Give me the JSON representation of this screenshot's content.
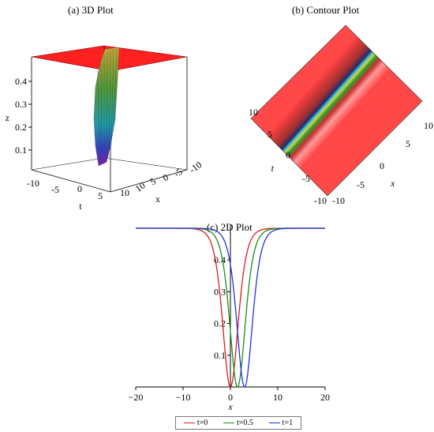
{
  "panels": {
    "a": {
      "title": "(a) 3D Plot",
      "zlabel": "z",
      "tlabel": "t",
      "xlabel": "x",
      "zticks": [
        "0.4",
        "0.3",
        "0.2",
        "0.1"
      ],
      "tticks": [
        "-10",
        "-5",
        "0",
        "5",
        "10"
      ],
      "xticks": [
        "10",
        "5",
        "0",
        "-5",
        "-10"
      ]
    },
    "b": {
      "title": "(b) Contour Plot",
      "tlabel": "t",
      "xlabel": "x",
      "tticks": [
        "10",
        "5",
        "0",
        "-5",
        "-10"
      ],
      "xticks": [
        "10",
        "5",
        "0",
        "-5",
        "-10"
      ]
    },
    "c": {
      "title": "(c) 2D Plot"
    }
  },
  "colors": {
    "surface_top": "#ff0000",
    "series": [
      "#dd1c1c",
      "#1a8f1a",
      "#2233dd"
    ]
  },
  "chart_data": {
    "type": "line",
    "title": "(c) 2D Plot",
    "xlabel": "x",
    "ylabel": "",
    "xlim": [
      -20,
      20
    ],
    "ylim": [
      0,
      0.5
    ],
    "xticks": [
      -20,
      -10,
      0,
      10,
      20
    ],
    "yticks": [
      0.1,
      0.2,
      0.3,
      0.4
    ],
    "series": [
      {
        "name": "t=0",
        "t": 0,
        "center": 0,
        "depth": 0.5,
        "width": 2.2,
        "x": [
          -20,
          -10,
          -6,
          -4,
          -3,
          -2,
          -1,
          0,
          1,
          2,
          3,
          4,
          6,
          10,
          20
        ],
        "values": [
          0.5,
          0.5,
          0.497,
          0.48,
          0.44,
          0.34,
          0.14,
          0.0,
          0.14,
          0.34,
          0.44,
          0.48,
          0.497,
          0.5,
          0.5
        ]
      },
      {
        "name": "t=0.5",
        "t": 0.5,
        "center": 1.5,
        "depth": 0.5,
        "width": 2.2,
        "x": [
          -20,
          -10,
          -4.5,
          -2.5,
          -1.5,
          -0.5,
          0.5,
          1.5,
          2.5,
          3.5,
          4.5,
          5.5,
          7.5,
          11.5,
          20
        ],
        "values": [
          0.5,
          0.5,
          0.497,
          0.48,
          0.44,
          0.34,
          0.14,
          0.0,
          0.14,
          0.34,
          0.44,
          0.48,
          0.497,
          0.5,
          0.5
        ]
      },
      {
        "name": "t=1",
        "t": 1,
        "center": 3,
        "depth": 0.5,
        "width": 2.2,
        "x": [
          -20,
          -10,
          -3,
          -1,
          0,
          1,
          2,
          3,
          4,
          5,
          6,
          7,
          9,
          13,
          20
        ],
        "values": [
          0.5,
          0.5,
          0.497,
          0.48,
          0.44,
          0.34,
          0.14,
          0.0,
          0.14,
          0.34,
          0.44,
          0.48,
          0.497,
          0.5,
          0.5
        ]
      }
    ],
    "legend": "bottom",
    "legend_labels": [
      "t=0",
      "t=0.5",
      "t=1"
    ]
  }
}
